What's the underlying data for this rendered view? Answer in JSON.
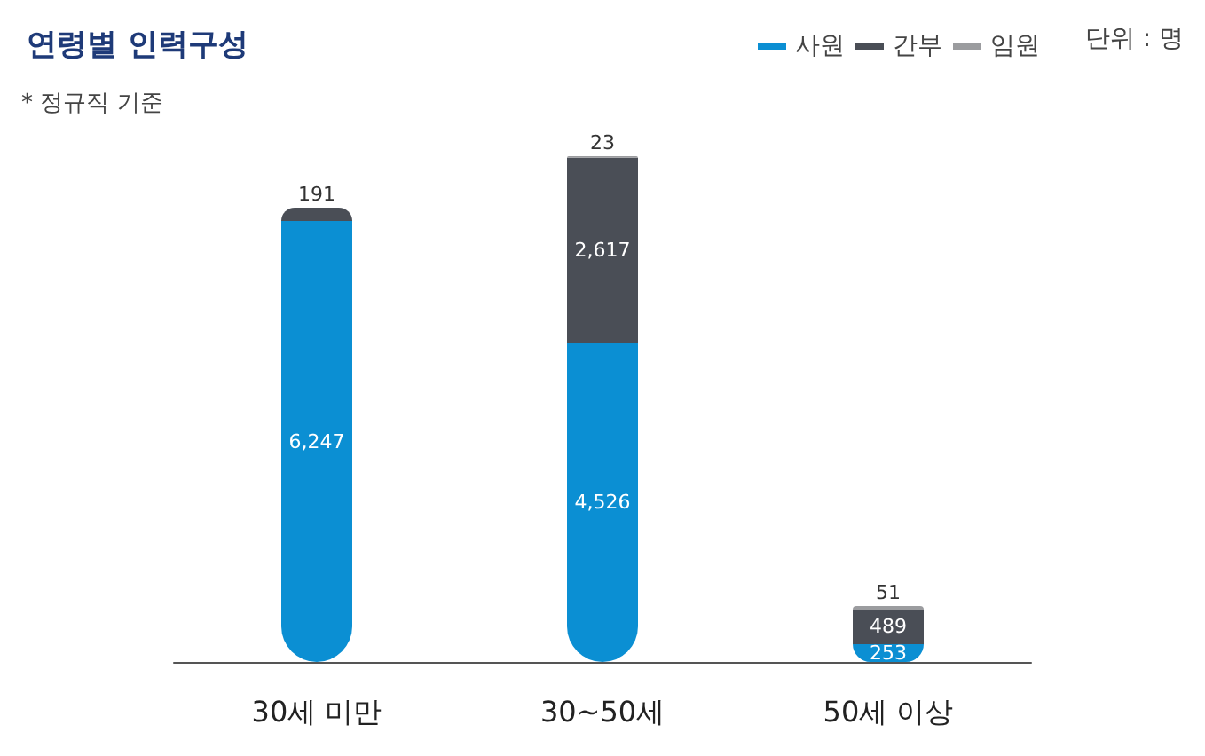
{
  "chart_data": {
    "type": "bar",
    "title": "연령별 인력구성",
    "stacked": true,
    "legend": "top right",
    "categories": [
      "30세 미만",
      "30~50세",
      "50세 이상"
    ],
    "series": [
      {
        "name": "사원",
        "color": "#0b8fd3",
        "values": [
          6247,
          4526,
          253
        ],
        "value_labels": [
          "6,247",
          "4,526",
          "253"
        ]
      },
      {
        "name": "간부",
        "color": "#4a4e56",
        "values": [
          191,
          2617,
          489
        ],
        "value_labels": [
          "191",
          "2,617",
          "489"
        ]
      },
      {
        "name": "임원",
        "color": "#9b9c9f",
        "values": [
          null,
          23,
          51
        ],
        "value_labels": [
          null,
          "23",
          "51"
        ]
      }
    ],
    "annotations": [
      "단위 : 명",
      "* 정규직 기준"
    ]
  }
}
